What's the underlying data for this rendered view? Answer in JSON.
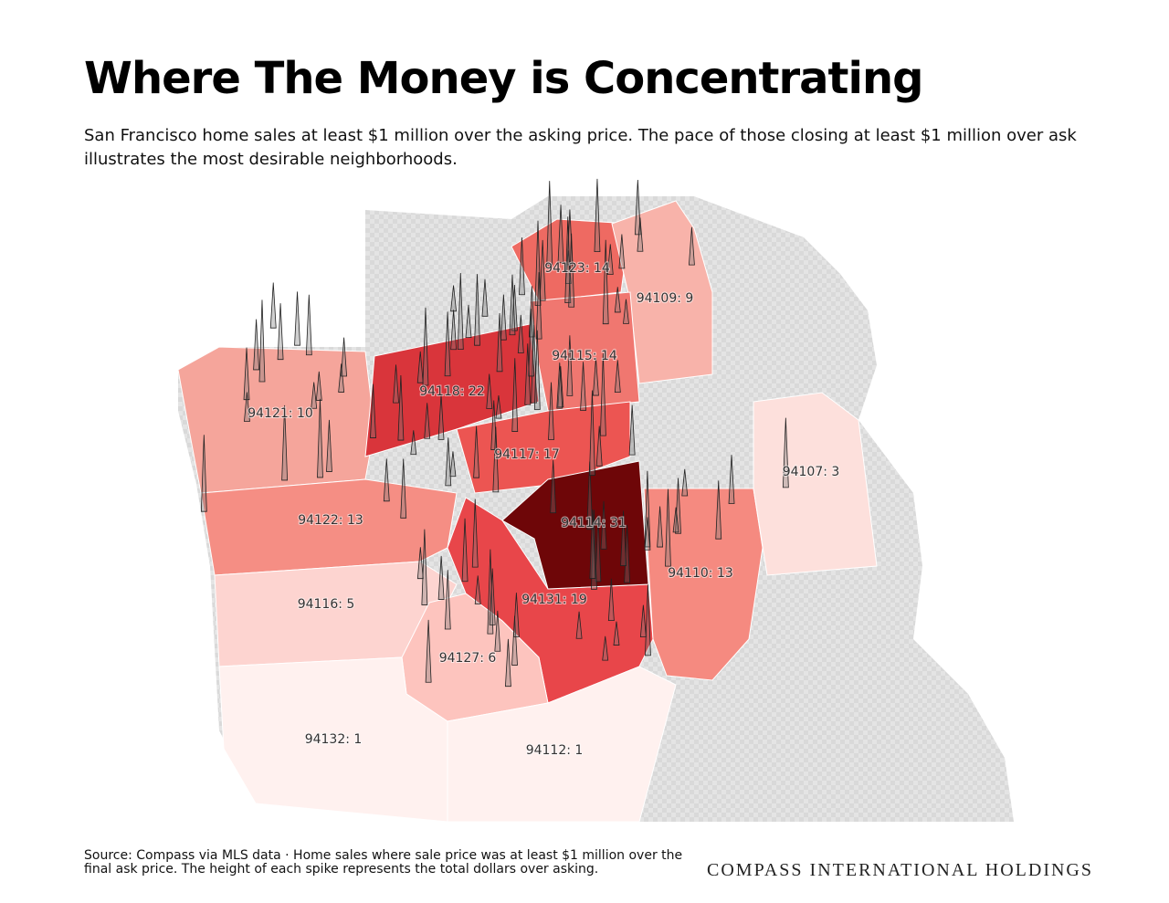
{
  "header": {
    "title": "Where The Money is Concentrating",
    "subtitle": "San Francisco home sales at least $1 million over the asking price. The pace of those closing at least $1 million over ask illustrates the most desirable neighborhoods."
  },
  "map": {
    "regions": [
      {
        "label": "94123: 14"
      },
      {
        "label": "94109: 9"
      },
      {
        "label": "94115: 14"
      },
      {
        "label": "94118: 22"
      },
      {
        "label": "94121: 10"
      },
      {
        "label": "94117: 17"
      },
      {
        "label": "94107: 3"
      },
      {
        "label": "94122: 13"
      },
      {
        "label": "94114: 31"
      },
      {
        "label": "94110: 13"
      },
      {
        "label": "94131: 19"
      },
      {
        "label": "94116: 5"
      },
      {
        "label": "94127: 6"
      },
      {
        "label": "94132: 1"
      },
      {
        "label": "94112: 1"
      }
    ]
  },
  "footer": {
    "source": "Source: Compass via MLS data · Home sales where sale price was at least $1 million over the final ask price. The height of each spike represents the total dollars over asking.",
    "brand": "COMPASS INTERNATIONAL HOLDINGS"
  }
}
